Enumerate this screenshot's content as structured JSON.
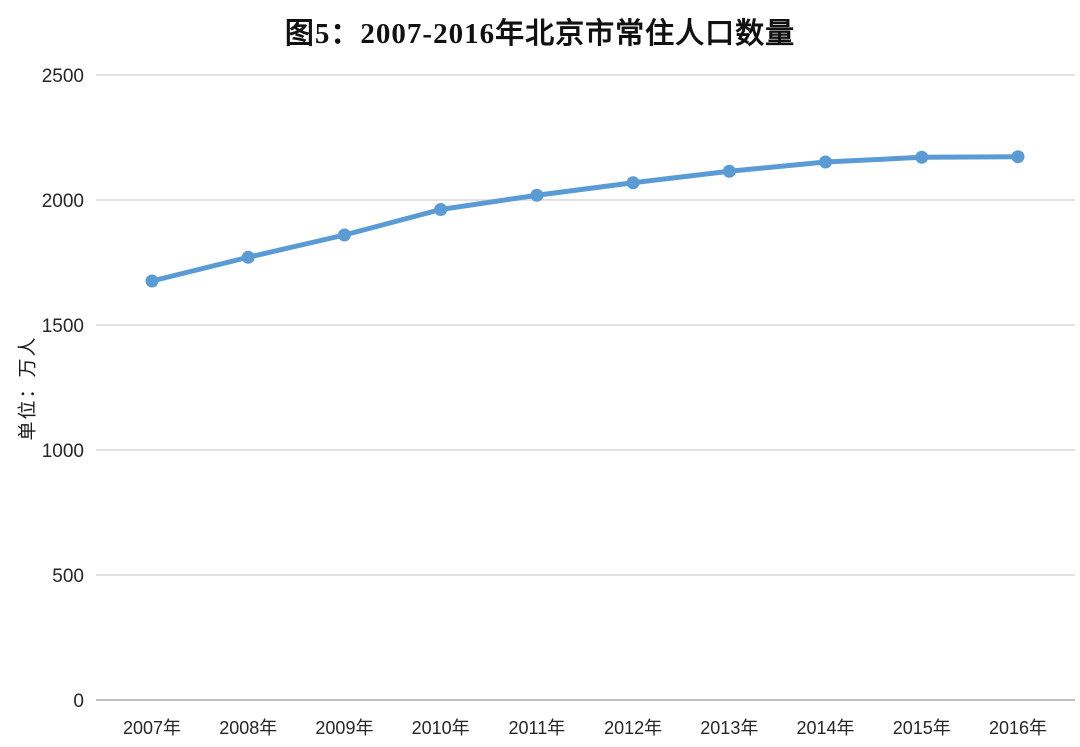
{
  "chart_data": {
    "type": "line",
    "title": "图5：2007-2016年北京市常住人口数量",
    "ylabel": "单位：万人",
    "xlabel": "",
    "categories": [
      "2007年",
      "2008年",
      "2009年",
      "2010年",
      "2011年",
      "2012年",
      "2013年",
      "2014年",
      "2015年",
      "2016年"
    ],
    "values": [
      1676,
      1771,
      1860,
      1962,
      2019,
      2069,
      2115,
      2152,
      2171,
      2173
    ],
    "ylim": [
      0,
      2500
    ],
    "yticks": [
      0,
      500,
      1000,
      1500,
      2000,
      2500
    ],
    "grid": true,
    "legend": "none",
    "marker": "circle",
    "colors": {
      "line": "#5B9BD5",
      "grid": "#D9D9D9",
      "axis": "#C0C0C0",
      "tick_text": "#262626",
      "title_text": "#111111"
    }
  }
}
